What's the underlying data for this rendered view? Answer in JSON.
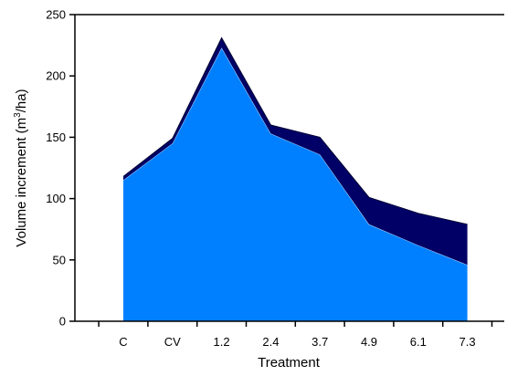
{
  "chart_data": {
    "type": "area",
    "stacked": true,
    "categories": [
      "C",
      "CV",
      "1.2",
      "2.4",
      "3.7",
      "4.9",
      "6.1",
      "7.3"
    ],
    "series": [
      {
        "values": [
          115,
          145,
          223,
          153,
          136,
          79,
          62,
          46
        ],
        "color": "#0080ff"
      },
      {
        "values": [
          3,
          4,
          8,
          7,
          14,
          22,
          26,
          33
        ],
        "color": "#000066"
      }
    ],
    "xlabel": "Treatment",
    "ylabel_pre": "Volume increment (m",
    "ylabel_sup": "3",
    "ylabel_post": "/ha)",
    "ylim": [
      0,
      250
    ],
    "yticks": [
      "0",
      "50",
      "100",
      "150",
      "200",
      "250"
    ],
    "grid": false,
    "legend": "none"
  }
}
